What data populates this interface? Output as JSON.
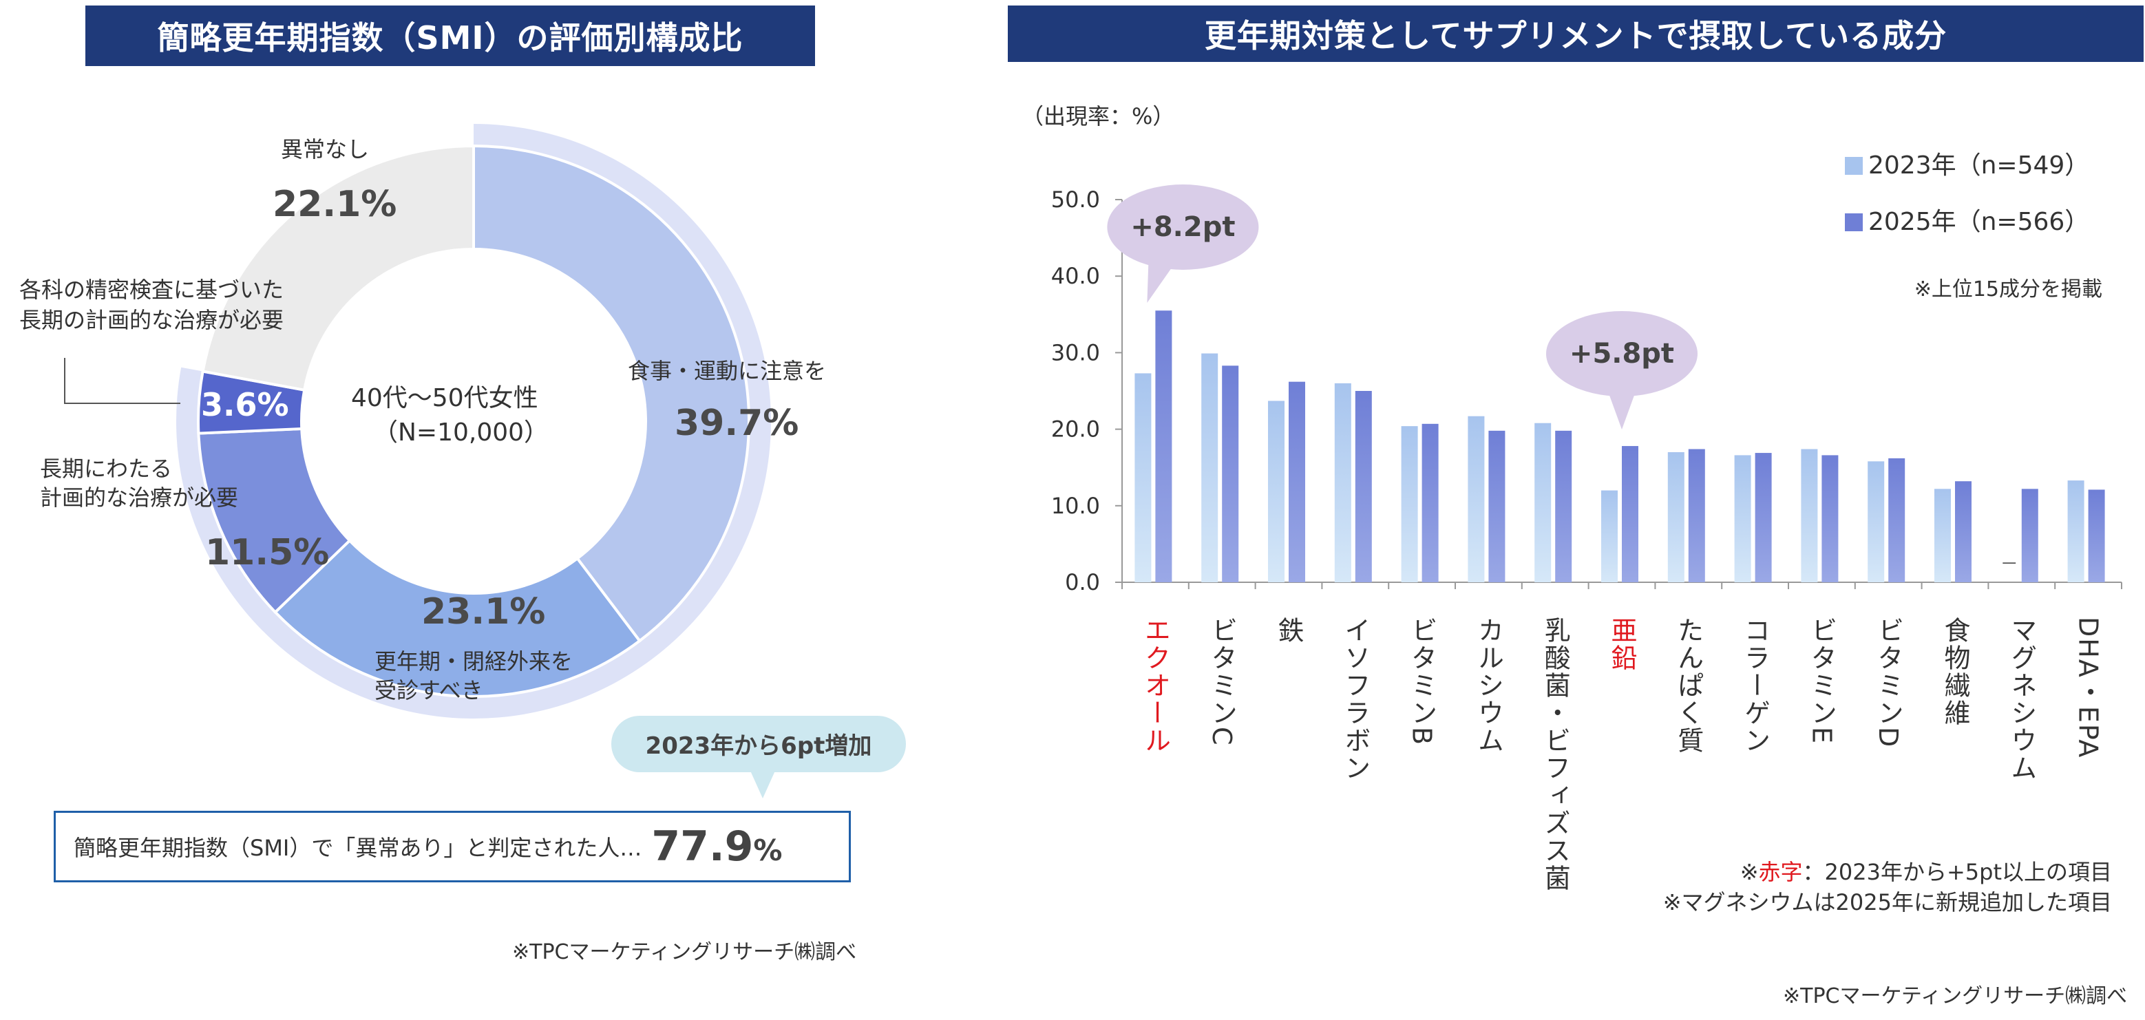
{
  "left_title": "簡略更年期指数（SMI）の評価別構成比",
  "right_title": "更年期対策としてサプリメントで摂取している成分",
  "donut": {
    "center_line1": "40代～50代女性",
    "center_line2": "（N=10,000）",
    "segments": [
      {
        "label": "食事・運動に注意を",
        "value": 39.7,
        "value_text": "39.7%",
        "color": "#b5c6ee"
      },
      {
        "label_line1": "更年期・閉経外来を",
        "label_line2": "受診すべき",
        "value": 23.1,
        "value_text": "23.1%",
        "color": "#8eaee8"
      },
      {
        "label_line1": "長期にわたる",
        "label_line2": "計画的な治療が必要",
        "value": 11.5,
        "value_text": "11.5%",
        "color": "#7b8fdc"
      },
      {
        "label_line1": "各科の精密検査に基づいた",
        "label_line2": "長期の計画的な治療が必要",
        "value": 3.6,
        "value_text": "3.6%",
        "color": "#5566cc"
      },
      {
        "label": "異常なし",
        "value": 22.1,
        "value_text": "22.1%",
        "color": "#ebebeb"
      }
    ],
    "outer_ring_color": "#dde2f7"
  },
  "callout_left": "2023年から6pt増加",
  "summary": {
    "text": "簡略更年期指数（SMI）で「異常あり」と判定された人…",
    "value": "77.9",
    "unit": "%"
  },
  "source_left": "※TPCマーケティングリサーチ㈱調べ",
  "source_right": "※TPCマーケティングリサーチ㈱調べ",
  "chart_data": {
    "type": "bar",
    "ylabel": "（出現率：%）",
    "ylim": [
      0,
      50
    ],
    "yticks": [
      "0.0",
      "10.0",
      "20.0",
      "30.0",
      "40.0",
      "50.0"
    ],
    "categories": [
      "エクオール",
      "ビタミンC",
      "鉄",
      "イソフラボン",
      "ビタミンB",
      "カルシウム",
      "乳酸菌・ビフィズス菌",
      "亜鉛",
      "たんぱく質",
      "コラーゲン",
      "ビタミンE",
      "ビタミンD",
      "食物繊維",
      "マグネシウム",
      "DHA・EPA"
    ],
    "highlighted": [
      true,
      false,
      false,
      false,
      false,
      false,
      false,
      true,
      false,
      false,
      false,
      false,
      false,
      false,
      false
    ],
    "series": [
      {
        "name": "2023年（n=549）",
        "color": "#a7c4ee",
        "values": [
          27.3,
          29.9,
          23.7,
          26.0,
          20.4,
          21.7,
          20.8,
          12.0,
          17.0,
          16.6,
          17.4,
          15.8,
          12.2,
          null,
          13.3
        ]
      },
      {
        "name": "2025年（n=566）",
        "color": "#6f7fd6",
        "values": [
          35.5,
          28.3,
          26.2,
          25.0,
          20.7,
          19.8,
          19.8,
          17.8,
          17.4,
          16.9,
          16.6,
          16.2,
          13.2,
          12.2,
          12.1
        ]
      }
    ],
    "missing_marker": "－",
    "annotations": [
      {
        "text": "+8.2pt",
        "category": "エクオール"
      },
      {
        "text": "+5.8pt",
        "category": "亜鉛"
      }
    ],
    "note_top15": "※上位15成分を掲載",
    "note_red_prefix": "※",
    "note_red_word": "赤字",
    "note_red_rest": "：2023年から+5pt以上の項目",
    "note_magnesium": "※マグネシウムは2025年に新規追加した項目",
    "colors": {
      "highlight_text": "#e0191f",
      "axis": "#999999",
      "bubble": "#d9cde8"
    }
  }
}
